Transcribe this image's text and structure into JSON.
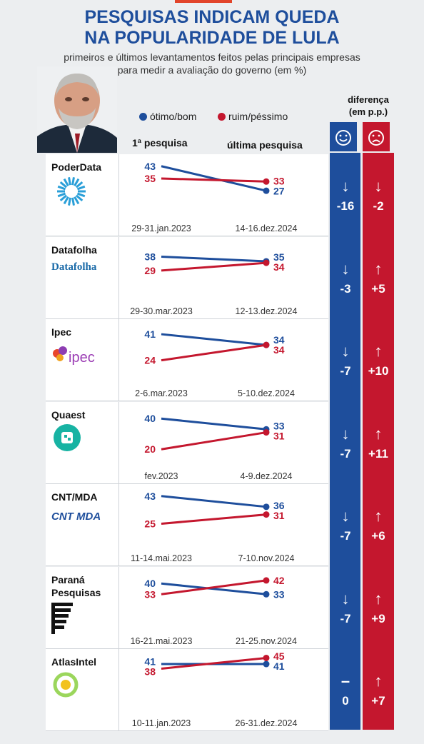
{
  "title_line1": "PESQUISAS INDICAM QUEDA",
  "title_line2": "NA POPULARIDADE DE LULA",
  "subtitle_line1": "primeiros e últimos levantamentos feitos pelas principais empresas",
  "subtitle_line2": "para medir a avaliação do governo (em %)",
  "legend": {
    "good": "ótimo/bom",
    "bad": "ruim/péssimo"
  },
  "headers": {
    "first": "1ª pesquisa",
    "last": "última pesquisa",
    "diff_line1": "diferença",
    "diff_line2": "(em p.p.)"
  },
  "colors": {
    "good": "#1e4e9c",
    "bad": "#c4172e",
    "title": "#1e4e9c"
  },
  "icons": {
    "good_face": "smiley-face-icon",
    "bad_face": "sad-face-icon",
    "down": "arrow-down-icon",
    "up": "arrow-up-icon",
    "flat": "dash-icon"
  },
  "chart_data": {
    "type": "line",
    "units": "%",
    "series_names": [
      "ótimo/bom",
      "ruim/péssimo"
    ],
    "pollsters": [
      {
        "name": "PoderData",
        "logo_text": "",
        "first_date": "29-31.jan.2023",
        "last_date": "14-16.dez.2024",
        "good": [
          43,
          27
        ],
        "bad": [
          35,
          33
        ],
        "diff_good": "-16",
        "diff_bad": "-2",
        "arrow_good": "↓",
        "arrow_bad": "↓"
      },
      {
        "name": "Datafolha",
        "logo_text": "Datafolha",
        "first_date": "29-30.mar.2023",
        "last_date": "12-13.dez.2024",
        "good": [
          38,
          35
        ],
        "bad": [
          29,
          34
        ],
        "diff_good": "-3",
        "diff_bad": "+5",
        "arrow_good": "↓",
        "arrow_bad": "↑"
      },
      {
        "name": "Ipec",
        "logo_text": "ipec",
        "first_date": "2-6.mar.2023",
        "last_date": "5-10.dez.2024",
        "good": [
          41,
          34
        ],
        "bad": [
          24,
          34
        ],
        "diff_good": "-7",
        "diff_bad": "+10",
        "arrow_good": "↓",
        "arrow_bad": "↑"
      },
      {
        "name": "Quaest",
        "logo_text": "",
        "first_date": "fev.2023",
        "last_date": "4-9.dez.2024",
        "good": [
          40,
          33
        ],
        "bad": [
          20,
          31
        ],
        "diff_good": "-7",
        "diff_bad": "+11",
        "arrow_good": "↓",
        "arrow_bad": "↑"
      },
      {
        "name": "CNT/MDA",
        "logo_text": "CNT MDA",
        "first_date": "11-14.mai.2023",
        "last_date": "7-10.nov.2024",
        "good": [
          43,
          36
        ],
        "bad": [
          25,
          31
        ],
        "diff_good": "-7",
        "diff_bad": "+6",
        "arrow_good": "↓",
        "arrow_bad": "↑"
      },
      {
        "name": "Paraná Pesquisas",
        "logo_text": "",
        "first_date": "16-21.mai.2023",
        "last_date": "21-25.nov.2024",
        "good": [
          40,
          33
        ],
        "bad": [
          33,
          42
        ],
        "diff_good": "-7",
        "diff_bad": "+9",
        "arrow_good": "↓",
        "arrow_bad": "↑"
      },
      {
        "name": "AtlasIntel",
        "logo_text": "",
        "first_date": "10-11.jan.2023",
        "last_date": "26-31.dez.2024",
        "good": [
          41,
          41
        ],
        "bad": [
          38,
          45
        ],
        "diff_good": "0",
        "diff_bad": "+7",
        "arrow_good": "–",
        "arrow_bad": "↑"
      }
    ]
  }
}
